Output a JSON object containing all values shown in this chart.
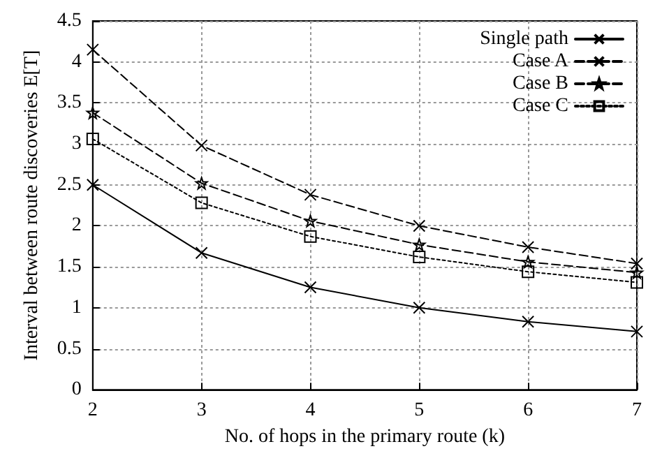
{
  "chart_data": {
    "type": "line",
    "xlabel": "No. of hops in the primary route (k)",
    "ylabel": "Interval between route discoveries E[T]",
    "x": [
      2,
      3,
      4,
      5,
      6,
      7
    ],
    "xlim": [
      2,
      7
    ],
    "xticks": [
      2,
      3,
      4,
      5,
      6,
      7
    ],
    "ylim": [
      0,
      4.5
    ],
    "yticks": [
      0,
      0.5,
      1,
      1.5,
      2,
      2.5,
      3,
      3.5,
      4,
      4.5
    ],
    "grid": true,
    "legend": "top right",
    "series": [
      {
        "name": "Single path",
        "color": "#000000",
        "marker": "cross",
        "line_style": "solid",
        "values": [
          2.5,
          1.67,
          1.25,
          1.0,
          0.83,
          0.71
        ]
      },
      {
        "name": "Case A",
        "color": "#000000",
        "marker": "cross",
        "line_style": "dashed",
        "values": [
          4.15,
          2.98,
          2.38,
          2.0,
          1.74,
          1.54
        ]
      },
      {
        "name": "Case B",
        "color": "#000000",
        "marker": "star",
        "line_style": "dashed",
        "values": [
          3.38,
          2.52,
          2.06,
          1.77,
          1.56,
          1.43
        ]
      },
      {
        "name": "Case C",
        "color": "#000000",
        "marker": "square",
        "line_style": "dotted",
        "values": [
          3.06,
          2.28,
          1.87,
          1.62,
          1.44,
          1.31
        ]
      }
    ]
  }
}
